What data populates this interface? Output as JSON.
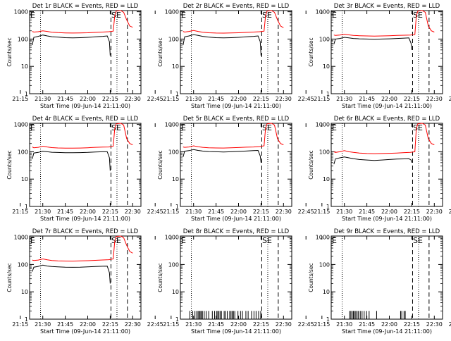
{
  "figure": {
    "xlabel": "Start Time (09-Jun-14 21:11:00)",
    "ylabel": "Counts/sec",
    "xtick_labels": [
      "21:15",
      "21:30",
      "21:45",
      "22:00",
      "22:15",
      "22:30",
      "22:45"
    ],
    "ytick_labels": [
      "1",
      "10",
      "100",
      "1000"
    ]
  },
  "colors": {
    "events": "#000000",
    "lld": "#ff0000",
    "axes": "#000000"
  },
  "chart_data": [
    {
      "type": "line",
      "title": "Det 1r BLACK = Events, RED = LLD",
      "xlabel": "Start Time (09-Jun-14 21:11:00)",
      "ylabel": "Counts/sec",
      "x_range_minutes": [
        21.2,
        95.5
      ],
      "ylim": [
        1,
        1100
      ],
      "yscale": "log",
      "event_markers": [
        {
          "label": "E",
          "t": 28.5
        },
        {
          "label": "SE",
          "t": 79.5
        }
      ],
      "vlines": [
        {
          "t": 28.5,
          "style": "dotted"
        },
        {
          "t": 75.5,
          "style": "dashed"
        },
        {
          "t": 79.5,
          "style": "dotted"
        },
        {
          "t": 86.5,
          "style": "dashed"
        }
      ],
      "series": [
        {
          "name": "Events",
          "color": "#000000",
          "x": [
            23,
            24,
            27,
            30,
            33,
            36,
            40,
            45,
            50,
            55,
            60,
            65,
            70,
            73,
            74.5,
            75
          ],
          "y": [
            60,
            115,
            125,
            140,
            130,
            122,
            118,
            112,
            110,
            112,
            115,
            120,
            125,
            130,
            80,
            25
          ]
        },
        {
          "name": "LLD",
          "color": "#ff0000",
          "x": [
            23,
            24,
            27,
            30,
            33,
            36,
            40,
            45,
            50,
            55,
            60,
            65,
            70,
            74,
            77,
            78,
            79,
            82,
            84,
            86,
            88,
            90
          ],
          "y": [
            190,
            180,
            185,
            200,
            190,
            178,
            172,
            168,
            166,
            168,
            170,
            175,
            180,
            185,
            195,
            700,
            1050,
            1100,
            950,
            500,
            300,
            270
          ]
        }
      ]
    },
    {
      "type": "line",
      "title": "Det 2r BLACK = Events, RED = LLD",
      "xlabel": "Start Time (09-Jun-14 21:11:00)",
      "ylabel": "Counts/sec",
      "x_range_minutes": [
        21.2,
        95.5
      ],
      "ylim": [
        1,
        1100
      ],
      "yscale": "log",
      "event_markers": [
        {
          "label": "E",
          "t": 28.5
        },
        {
          "label": "SE",
          "t": 79.5
        }
      ],
      "vlines": [
        {
          "t": 28.5,
          "style": "dotted"
        },
        {
          "t": 75.5,
          "style": "dashed"
        },
        {
          "t": 79.5,
          "style": "dotted"
        },
        {
          "t": 86.5,
          "style": "dashed"
        }
      ],
      "series": [
        {
          "name": "Events",
          "color": "#000000",
          "x": [
            23,
            24,
            27,
            30,
            33,
            36,
            40,
            45,
            50,
            55,
            60,
            65,
            70,
            73,
            74.5,
            75
          ],
          "y": [
            60,
            120,
            130,
            145,
            135,
            125,
            118,
            112,
            110,
            112,
            115,
            120,
            125,
            130,
            80,
            25
          ]
        },
        {
          "name": "LLD",
          "color": "#ff0000",
          "x": [
            23,
            24,
            27,
            30,
            33,
            36,
            40,
            45,
            50,
            55,
            60,
            65,
            70,
            74,
            77,
            78,
            79,
            82,
            84,
            86,
            88,
            90
          ],
          "y": [
            190,
            180,
            190,
            205,
            190,
            178,
            170,
            166,
            165,
            167,
            170,
            175,
            180,
            185,
            195,
            700,
            1050,
            1100,
            950,
            500,
            300,
            260
          ]
        }
      ]
    },
    {
      "type": "line",
      "title": "Det 3r BLACK = Events, RED = LLD",
      "xlabel": "Start Time (09-Jun-14 21:11:00)",
      "ylabel": "Counts/sec",
      "x_range_minutes": [
        21.2,
        95.5
      ],
      "ylim": [
        1,
        1100
      ],
      "yscale": "log",
      "event_markers": [
        {
          "label": "E",
          "t": 28.5
        },
        {
          "label": "SE",
          "t": 79.5
        }
      ],
      "vlines": [
        {
          "t": 28.5,
          "style": "dotted"
        },
        {
          "t": 75.5,
          "style": "dashed"
        },
        {
          "t": 79.5,
          "style": "dotted"
        },
        {
          "t": 86.5,
          "style": "dashed"
        }
      ],
      "series": [
        {
          "name": "Events",
          "color": "#000000",
          "x": [
            23,
            24,
            27,
            30,
            33,
            36,
            40,
            45,
            50,
            55,
            60,
            65,
            70,
            73,
            74.5,
            75
          ],
          "y": [
            65,
            100,
            105,
            115,
            110,
            105,
            102,
            100,
            98,
            100,
            102,
            105,
            108,
            110,
            70,
            40
          ]
        },
        {
          "name": "LLD",
          "color": "#ff0000",
          "x": [
            23,
            24,
            27,
            30,
            33,
            36,
            40,
            45,
            50,
            55,
            60,
            65,
            70,
            74,
            77,
            78,
            79,
            82,
            84,
            86,
            88,
            90
          ],
          "y": [
            140,
            135,
            140,
            150,
            142,
            135,
            132,
            130,
            128,
            130,
            132,
            135,
            138,
            140,
            145,
            700,
            1050,
            1100,
            950,
            300,
            200,
            180
          ]
        }
      ]
    },
    {
      "type": "line",
      "title": "Det 4r BLACK = Events, RED = LLD",
      "xlabel": "Start Time (09-Jun-14 21:11:00)",
      "ylabel": "Counts/sec",
      "x_range_minutes": [
        21.2,
        95.5
      ],
      "ylim": [
        1,
        1100
      ],
      "yscale": "log",
      "event_markers": [
        {
          "label": "E",
          "t": 28.5
        },
        {
          "label": "SE",
          "t": 79.5
        }
      ],
      "vlines": [
        {
          "t": 28.5,
          "style": "dotted"
        },
        {
          "t": 75.5,
          "style": "dashed"
        },
        {
          "t": 79.5,
          "style": "dotted"
        },
        {
          "t": 86.5,
          "style": "dashed"
        }
      ],
      "series": [
        {
          "name": "Events",
          "color": "#000000",
          "x": [
            23,
            24,
            27,
            30,
            33,
            36,
            40,
            45,
            50,
            55,
            60,
            65,
            70,
            73,
            74.5,
            75
          ],
          "y": [
            55,
            90,
            95,
            105,
            100,
            96,
            94,
            92,
            92,
            93,
            95,
            98,
            100,
            100,
            60,
            20
          ]
        },
        {
          "name": "LLD",
          "color": "#ff0000",
          "x": [
            23,
            24,
            27,
            30,
            33,
            36,
            40,
            45,
            50,
            55,
            60,
            65,
            70,
            74,
            77,
            78,
            79,
            82,
            84,
            86,
            88,
            90
          ],
          "y": [
            150,
            140,
            145,
            160,
            150,
            142,
            138,
            136,
            135,
            137,
            140,
            145,
            148,
            150,
            160,
            700,
            1050,
            1100,
            950,
            300,
            200,
            180
          ]
        }
      ]
    },
    {
      "type": "line",
      "title": "Det 5r BLACK = Events, RED = LLD",
      "xlabel": "Start Time (09-Jun-14 21:11:00)",
      "ylabel": "Counts/sec",
      "x_range_minutes": [
        21.2,
        95.5
      ],
      "ylim": [
        1,
        1100
      ],
      "yscale": "log",
      "event_markers": [
        {
          "label": "E",
          "t": 28.5
        },
        {
          "label": "SE",
          "t": 79.5
        }
      ],
      "vlines": [
        {
          "t": 28.5,
          "style": "dotted"
        },
        {
          "t": 75.5,
          "style": "dashed"
        },
        {
          "t": 79.5,
          "style": "dotted"
        },
        {
          "t": 86.5,
          "style": "dashed"
        }
      ],
      "series": [
        {
          "name": "Events",
          "color": "#000000",
          "x": [
            23,
            24,
            27,
            30,
            33,
            36,
            40,
            45,
            50,
            55,
            60,
            65,
            70,
            73,
            74.5,
            75
          ],
          "y": [
            65,
            105,
            110,
            120,
            112,
            106,
            102,
            100,
            98,
            100,
            103,
            106,
            110,
            112,
            70,
            40
          ]
        },
        {
          "name": "LLD",
          "color": "#ff0000",
          "x": [
            23,
            24,
            27,
            30,
            33,
            36,
            40,
            45,
            50,
            55,
            60,
            65,
            70,
            74,
            77,
            78,
            79,
            82,
            84,
            86,
            88,
            90
          ],
          "y": [
            150,
            145,
            150,
            165,
            152,
            145,
            140,
            138,
            137,
            140,
            143,
            147,
            150,
            155,
            165,
            700,
            1050,
            1100,
            950,
            300,
            200,
            180
          ]
        }
      ]
    },
    {
      "type": "line",
      "title": "Det 6r BLACK = Events, RED = LLD",
      "xlabel": "Start Time (09-Jun-14 21:11:00)",
      "ylabel": "Counts/sec",
      "x_range_minutes": [
        21.2,
        95.5
      ],
      "ylim": [
        1,
        1100
      ],
      "yscale": "log",
      "event_markers": [
        {
          "label": "E",
          "t": 28.5
        },
        {
          "label": "SE",
          "t": 79.5
        }
      ],
      "vlines": [
        {
          "t": 28.5,
          "style": "dotted"
        },
        {
          "t": 75.5,
          "style": "dashed"
        },
        {
          "t": 79.5,
          "style": "dotted"
        },
        {
          "t": 86.5,
          "style": "dashed"
        }
      ],
      "series": [
        {
          "name": "Events",
          "color": "#000000",
          "x": [
            23,
            24,
            27,
            30,
            33,
            36,
            40,
            45,
            50,
            55,
            60,
            65,
            70,
            73,
            74.5,
            75
          ],
          "y": [
            35,
            55,
            60,
            65,
            60,
            56,
            52,
            50,
            48,
            50,
            52,
            54,
            55,
            56,
            50,
            40
          ]
        },
        {
          "name": "LLD",
          "color": "#ff0000",
          "x": [
            23,
            24,
            27,
            30,
            33,
            36,
            40,
            45,
            50,
            55,
            60,
            65,
            70,
            74,
            77,
            78,
            79,
            82,
            84,
            86,
            88,
            90
          ],
          "y": [
            100,
            95,
            100,
            110,
            100,
            95,
            90,
            86,
            85,
            86,
            88,
            90,
            93,
            95,
            100,
            700,
            1050,
            1100,
            950,
            300,
            200,
            180
          ]
        }
      ]
    },
    {
      "type": "line",
      "title": "Det 7r BLACK = Events, RED = LLD",
      "xlabel": "Start Time (09-Jun-14 21:11:00)",
      "ylabel": "Counts/sec",
      "x_range_minutes": [
        21.2,
        95.5
      ],
      "ylim": [
        1,
        1100
      ],
      "yscale": "log",
      "event_markers": [
        {
          "label": "E",
          "t": 28.5
        },
        {
          "label": "SE",
          "t": 79.5
        }
      ],
      "vlines": [
        {
          "t": 28.5,
          "style": "dotted"
        },
        {
          "t": 75.5,
          "style": "dashed"
        },
        {
          "t": 79.5,
          "style": "dotted"
        },
        {
          "t": 86.5,
          "style": "dashed"
        }
      ],
      "series": [
        {
          "name": "Events",
          "color": "#000000",
          "x": [
            23,
            24,
            27,
            30,
            33,
            36,
            40,
            45,
            50,
            55,
            60,
            65,
            70,
            73,
            74.5,
            75
          ],
          "y": [
            55,
            80,
            85,
            95,
            88,
            84,
            82,
            80,
            79,
            80,
            82,
            84,
            86,
            87,
            50,
            20
          ]
        },
        {
          "name": "LLD",
          "color": "#ff0000",
          "x": [
            23,
            24,
            27,
            30,
            33,
            36,
            40,
            45,
            50,
            55,
            60,
            65,
            70,
            74,
            77,
            78,
            79,
            82,
            84,
            86,
            88,
            90
          ],
          "y": [
            145,
            140,
            145,
            160,
            148,
            140,
            136,
            134,
            133,
            135,
            138,
            142,
            146,
            150,
            160,
            700,
            1050,
            1100,
            950,
            500,
            300,
            260
          ]
        }
      ]
    },
    {
      "type": "line",
      "title": "Det 8r BLACK = Events, RED = LLD",
      "xlabel": "Start Time (09-Jun-14 21:11:00)",
      "ylabel": "Counts/sec",
      "x_range_minutes": [
        21.2,
        95.5
      ],
      "ylim": [
        1,
        1100
      ],
      "yscale": "log",
      "event_markers": [
        {
          "label": "E",
          "t": 28.5
        },
        {
          "label": "SE",
          "t": 79.5
        }
      ],
      "vlines": [
        {
          "t": 28.5,
          "style": "dotted"
        },
        {
          "t": 75.5,
          "style": "dashed"
        },
        {
          "t": 79.5,
          "style": "dotted"
        },
        {
          "t": 86.5,
          "style": "dashed"
        }
      ],
      "series": [
        {
          "name": "Events",
          "color": "#000000",
          "type": "spikes",
          "baseline": 1,
          "spike_value": 2,
          "x": [
            27.5,
            29.4,
            30.9,
            32.1,
            33.0,
            33.8,
            34.4,
            35.1,
            35.9,
            37.1,
            38.4,
            40.1,
            42.5,
            44.0,
            45.3,
            46.1,
            46.9,
            47.7,
            48.6,
            50.4,
            51.2,
            52.5,
            54.1,
            55.0,
            55.8,
            56.6,
            57.5,
            59.6,
            61.3,
            62.6,
            64.9,
            66.4,
            68.7,
            70.3,
            71.7,
            73.4,
            74.8
          ]
        }
      ]
    },
    {
      "type": "line",
      "title": "Det 9r BLACK = Events, RED = LLD",
      "xlabel": "Start Time (09-Jun-14 21:11:00)",
      "ylabel": "Counts/sec",
      "x_range_minutes": [
        21.2,
        95.5
      ],
      "ylim": [
        1,
        1100
      ],
      "yscale": "log",
      "event_markers": [
        {
          "label": "E",
          "t": 28.5
        },
        {
          "label": "SE",
          "t": 79.5
        }
      ],
      "vlines": [
        {
          "t": 28.5,
          "style": "dotted"
        },
        {
          "t": 75.5,
          "style": "dashed"
        },
        {
          "t": 79.5,
          "style": "dotted"
        },
        {
          "t": 86.5,
          "style": "dashed"
        }
      ],
      "series": [
        {
          "name": "Events",
          "color": "#000000",
          "type": "spikes",
          "baseline": 1,
          "spike_value": 2,
          "x": [
            33.5,
            34.3,
            35.2,
            36.0,
            36.8,
            37.6,
            38.5,
            39.4,
            40.6,
            41.8,
            43.2,
            44.8,
            46.5,
            51.5,
            67.5,
            68.3,
            69.8,
            70.6
          ]
        }
      ]
    }
  ]
}
